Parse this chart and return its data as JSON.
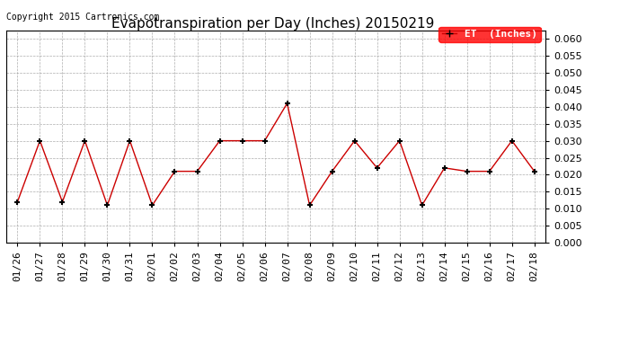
{
  "title": "Evapotranspiration per Day (Inches) 20150219",
  "copyright": "Copyright 2015 Cartronics.com",
  "legend_label": "ET  (Inches)",
  "legend_bg": "#ff0000",
  "legend_text_color": "#ffffff",
  "x_labels": [
    "01/26",
    "01/27",
    "01/28",
    "01/29",
    "01/30",
    "01/31",
    "02/01",
    "02/02",
    "02/03",
    "02/04",
    "02/05",
    "02/06",
    "02/07",
    "02/08",
    "02/09",
    "02/10",
    "02/11",
    "02/12",
    "02/13",
    "02/14",
    "02/15",
    "02/16",
    "02/17",
    "02/18"
  ],
  "y_values": [
    0.012,
    0.03,
    0.012,
    0.03,
    0.011,
    0.03,
    0.011,
    0.021,
    0.021,
    0.03,
    0.03,
    0.03,
    0.041,
    0.011,
    0.021,
    0.03,
    0.022,
    0.03,
    0.011,
    0.022,
    0.021,
    0.021,
    0.03,
    0.021
  ],
  "line_color": "#cc0000",
  "marker_color": "#000000",
  "ylim": [
    0.0,
    0.0625
  ],
  "yticks": [
    0.0,
    0.005,
    0.01,
    0.015,
    0.02,
    0.025,
    0.03,
    0.035,
    0.04,
    0.045,
    0.05,
    0.055,
    0.06
  ],
  "bg_color": "#ffffff",
  "grid_color": "#999999",
  "title_fontsize": 11,
  "copyright_fontsize": 7,
  "tick_fontsize": 8,
  "legend_fontsize": 8
}
